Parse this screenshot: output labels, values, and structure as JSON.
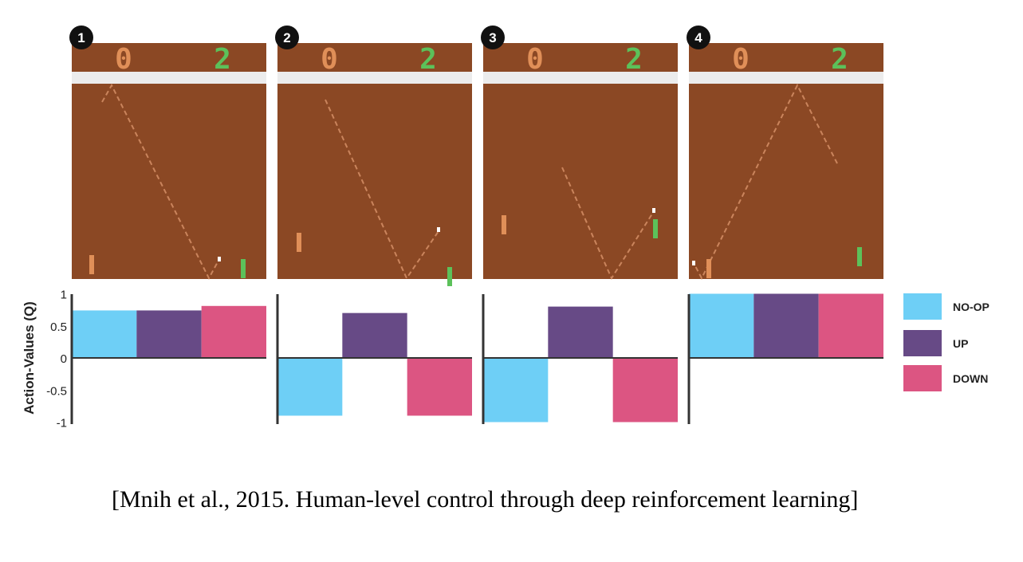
{
  "chart_data": {
    "type": "bar",
    "ylabel": "Action-Values (Q)",
    "ylim": [
      -1,
      1
    ],
    "yticks": [
      "1",
      "0.5",
      "0",
      "-0.5",
      "-1"
    ],
    "ytick_values": [
      1,
      0.5,
      0,
      -0.5,
      -1
    ],
    "grid": false,
    "legend_placement": "right",
    "categories": [
      "NO-OP",
      "UP",
      "DOWN"
    ],
    "colors": {
      "NO-OP": "#6ecff6",
      "UP": "#674a86",
      "DOWN": "#dc5582"
    },
    "panels": [
      {
        "label": "1",
        "values": [
          0.74,
          0.74,
          0.81
        ]
      },
      {
        "label": "2",
        "values": [
          -0.9,
          0.7,
          -0.9
        ]
      },
      {
        "label": "3",
        "values": [
          -1.0,
          0.8,
          -1.0
        ]
      },
      {
        "label": "4",
        "values": [
          1.0,
          1.0,
          1.0
        ]
      }
    ]
  },
  "game": {
    "scores": {
      "left": "0",
      "right": "2"
    },
    "colors": {
      "field": "#8b4824",
      "strip": "#ececec",
      "left_player": "#e08f58",
      "right_player": "#5cc15a",
      "ball": "#ffffff"
    }
  },
  "citation": "[Mnih et al., 2015. Human-level control through deep reinforcement learning]"
}
